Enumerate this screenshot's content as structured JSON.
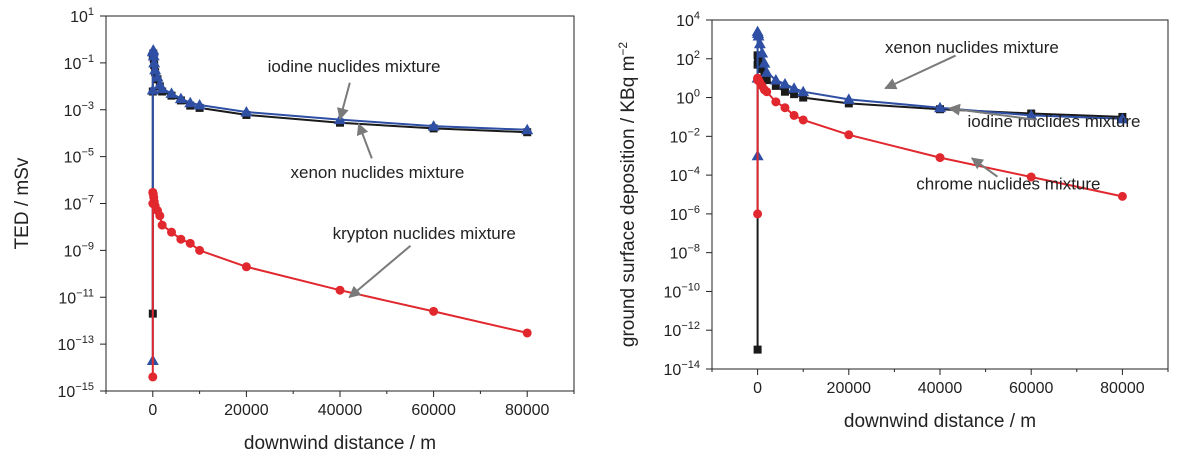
{
  "chart_data": [
    {
      "type": "line",
      "title": "",
      "xlabel": "downwind distance / m",
      "ylabel": "TED / mSv",
      "y_scale": "log",
      "xlim": [
        -10000,
        90000
      ],
      "ylim": [
        1e-15,
        10
      ],
      "x_ticks": [
        0,
        20000,
        40000,
        60000,
        80000
      ],
      "y_ticks": [
        {
          "value": 1e-15,
          "mantissa": "10",
          "exp": "−15"
        },
        {
          "value": 1e-13,
          "mantissa": "10",
          "exp": "−13"
        },
        {
          "value": 1e-11,
          "mantissa": "10",
          "exp": "−11"
        },
        {
          "value": 1e-09,
          "mantissa": "10",
          "exp": "−9"
        },
        {
          "value": 1e-07,
          "mantissa": "10",
          "exp": "−7"
        },
        {
          "value": 1e-05,
          "mantissa": "10",
          "exp": "−5"
        },
        {
          "value": 0.001,
          "mantissa": "10",
          "exp": "−3"
        },
        {
          "value": 0.1,
          "mantissa": "10",
          "exp": "−1"
        },
        {
          "value": 10,
          "mantissa": "10",
          "exp": "1"
        }
      ],
      "series": [
        {
          "color": "#1a1a1a",
          "marker": "square",
          "x": [
            0,
            0,
            0,
            100,
            200,
            300,
            500,
            1000,
            1500,
            2000,
            4000,
            6000,
            8000,
            10000,
            20000,
            40000,
            60000,
            80000
          ],
          "y": [
            2e-12,
            0.006,
            0.2,
            0.25,
            0.15,
            0.08,
            0.04,
            0.02,
            0.01,
            0.006,
            0.004,
            0.0025,
            0.0015,
            0.0012,
            0.0006,
            0.00028,
            0.00016,
            0.00011
          ]
        },
        {
          "color": "#2e4fa3",
          "marker": "triangle",
          "x": [
            0,
            0,
            0,
            100,
            200,
            300,
            500,
            1000,
            1500,
            2000,
            4000,
            6000,
            8000,
            10000,
            20000,
            40000,
            60000,
            80000
          ],
          "y": [
            2e-14,
            0.007,
            0.3,
            0.35,
            0.2,
            0.1,
            0.05,
            0.025,
            0.012,
            0.008,
            0.005,
            0.003,
            0.002,
            0.0016,
            0.0008,
            0.00038,
            0.0002,
            0.00014
          ]
        },
        {
          "color": "#e0282e",
          "marker": "circle",
          "x": [
            0,
            0,
            0,
            100,
            200,
            300,
            500,
            1000,
            1500,
            2000,
            4000,
            6000,
            8000,
            10000,
            20000,
            40000,
            60000,
            80000
          ],
          "y": [
            4e-15,
            1e-07,
            3e-07,
            2.5e-07,
            1.8e-07,
            1.2e-07,
            8e-08,
            5e-08,
            3e-08,
            1.2e-08,
            6e-09,
            3e-09,
            2e-09,
            1e-09,
            2e-10,
            2e-11,
            2.5e-12,
            3e-13
          ]
        }
      ],
      "annotations": [
        {
          "text": "iodine nuclides mixture",
          "x": 43000,
          "y": 0.04,
          "arrow_to": {
            "x": 40000,
            "y": 0.0004
          }
        },
        {
          "text": "xenon nuclides mixture",
          "x": 48000,
          "y": 1.2e-06,
          "arrow_to": {
            "x": 44000,
            "y": 0.00025
          }
        },
        {
          "text": "krypton nuclides mixture",
          "x": 58000,
          "y": 3e-09,
          "arrow_to": {
            "x": 42000,
            "y": 1e-11
          }
        }
      ]
    },
    {
      "type": "line",
      "title": "",
      "xlabel": "downwind distance / m",
      "ylabel": "ground surface deposition / KBq m",
      "ylabel_sup": "−2",
      "y_scale": "log",
      "xlim": [
        -10000,
        90000
      ],
      "ylim": [
        1e-14,
        10000
      ],
      "x_ticks": [
        0,
        20000,
        40000,
        60000,
        80000
      ],
      "y_ticks": [
        {
          "value": 1e-14,
          "mantissa": "10",
          "exp": "−14"
        },
        {
          "value": 1e-12,
          "mantissa": "10",
          "exp": "−12"
        },
        {
          "value": 1e-10,
          "mantissa": "10",
          "exp": "−10"
        },
        {
          "value": 1e-08,
          "mantissa": "10",
          "exp": "−8"
        },
        {
          "value": 1e-06,
          "mantissa": "10",
          "exp": "−6"
        },
        {
          "value": 0.0001,
          "mantissa": "10",
          "exp": "−4"
        },
        {
          "value": 0.01,
          "mantissa": "10",
          "exp": "−2"
        },
        {
          "value": 1,
          "mantissa": "10",
          "exp": "0"
        },
        {
          "value": 100,
          "mantissa": "10",
          "exp": "2"
        },
        {
          "value": 10000,
          "mantissa": "10",
          "exp": "4"
        }
      ],
      "series": [
        {
          "color": "#1a1a1a",
          "marker": "square",
          "x": [
            0,
            0,
            0,
            100,
            200,
            500,
            1000,
            1500,
            2000,
            4000,
            6000,
            8000,
            10000,
            20000,
            40000,
            60000,
            80000
          ],
          "y": [
            1e-13,
            50,
            150,
            120,
            80,
            50,
            30,
            15,
            8,
            4,
            2,
            1.5,
            1,
            0.5,
            0.25,
            0.15,
            0.1
          ]
        },
        {
          "color": "#2e4fa3",
          "marker": "triangle",
          "x": [
            0,
            0,
            0,
            100,
            200,
            500,
            1000,
            1500,
            2000,
            4000,
            6000,
            8000,
            10000,
            20000,
            40000,
            60000,
            80000
          ],
          "y": [
            0.001,
            10,
            2500,
            2000,
            1500,
            600,
            200,
            60,
            20,
            8,
            5,
            3,
            2,
            0.8,
            0.3,
            0.12,
            0.08
          ]
        },
        {
          "color": "#e0282e",
          "marker": "circle",
          "x": [
            0,
            0,
            0,
            200,
            500,
            1000,
            1500,
            2000,
            4000,
            6000,
            8000,
            10000,
            20000,
            40000,
            60000,
            80000
          ],
          "y": [
            1e-06,
            8,
            10,
            8,
            6,
            4,
            2.5,
            2,
            0.6,
            0.3,
            0.12,
            0.07,
            0.012,
            0.0008,
            8e-05,
            8e-06
          ]
        }
      ],
      "annotations": [
        {
          "text": "xenon nuclides mixture",
          "x": 47000,
          "y": 200,
          "arrow_to": {
            "x": 28000,
            "y": 3
          }
        },
        {
          "text": "iodine nuclides mixture",
          "x": 65000,
          "y": 0.03,
          "arrow_to": {
            "x": 42000,
            "y": 0.28
          }
        },
        {
          "text": "chrome nuclides mixture",
          "x": 55000,
          "y": 1.8e-05,
          "arrow_to": {
            "x": 47000,
            "y": 0.00075
          }
        }
      ]
    }
  ]
}
